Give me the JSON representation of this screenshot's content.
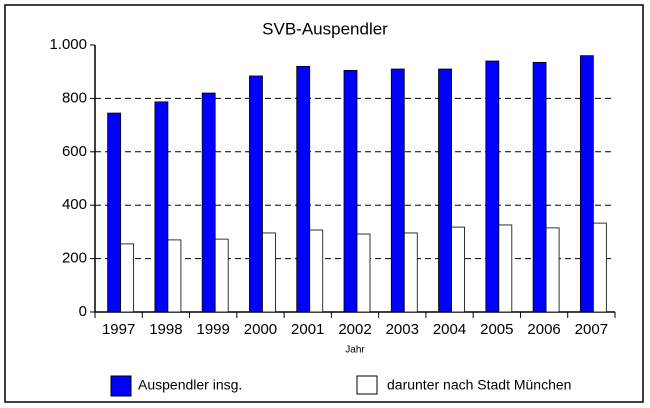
{
  "chart_data": {
    "type": "bar",
    "title": "SVB-Auspendler",
    "x_label": "Jahr",
    "categories": [
      "1997",
      "1998",
      "1999",
      "2000",
      "2001",
      "2002",
      "2003",
      "2004",
      "2005",
      "2006",
      "2007"
    ],
    "series": [
      {
        "name": "Auspendler insg.",
        "color": "#0000ff",
        "values": [
          745,
          787,
          820,
          884,
          920,
          905,
          910,
          910,
          940,
          935,
          960
        ]
      },
      {
        "name": "darunter nach Stadt München",
        "color": "#ffffff",
        "values": [
          255,
          270,
          273,
          296,
          307,
          292,
          296,
          318,
          326,
          315,
          333
        ]
      }
    ],
    "ylim": [
      0,
      1000
    ],
    "yticks": [
      0,
      200,
      400,
      600,
      800,
      {
        "value": 1000,
        "label": "1.000"
      }
    ],
    "grid": true
  }
}
